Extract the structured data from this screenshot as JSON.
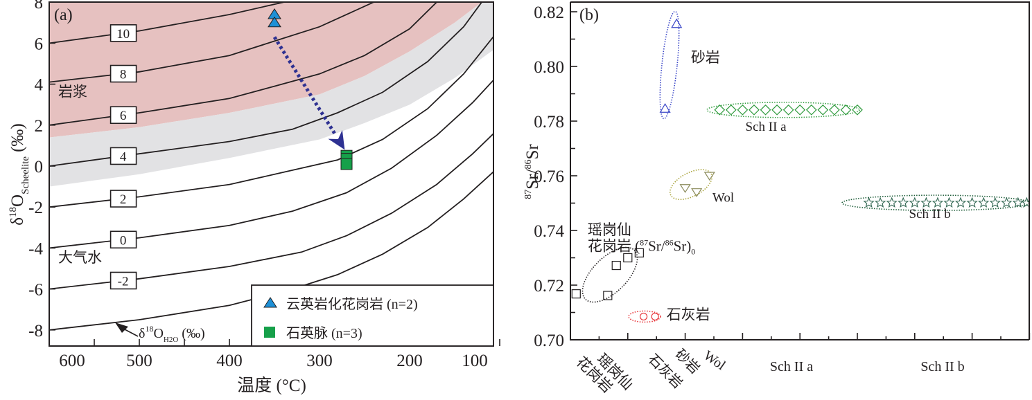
{
  "chart_data": [
    {
      "panel": "(a)",
      "type": "line",
      "title": "",
      "xlabel": "温度 (°C)",
      "ylabel": "δ18O Scheelite (‰)",
      "ylabel_parts": {
        "delta": "δ",
        "sup": "18",
        "main": "O",
        "sub": "Scheelite",
        "unit": "(‰)"
      },
      "xlim": [
        600,
        80
      ],
      "ylim": [
        -8.8,
        8
      ],
      "x_ticks": [
        600,
        500,
        400,
        300,
        200,
        100
      ],
      "x_minor_ticks": [
        550,
        450,
        350,
        250,
        150
      ],
      "y_ticks": [
        8,
        6,
        4,
        2,
        0,
        -2,
        -4,
        -6,
        -8
      ],
      "grid": false,
      "regions": [
        {
          "name": "岩浆",
          "color": "#e6c1c0",
          "label": "岩浆",
          "upper": [
            [
              600,
              8
            ],
            [
              80,
              8
            ]
          ],
          "lower": [
            [
              600,
              1.4
            ],
            [
              500,
              1.9
            ],
            [
              400,
              2.6
            ],
            [
              300,
              3.5
            ],
            [
              250,
              4.4
            ],
            [
              200,
              5.6
            ],
            [
              150,
              7.0
            ],
            [
              120,
              8
            ]
          ]
        },
        {
          "name": "过渡带",
          "color": "#e2e2e4",
          "label": "",
          "upper": [
            [
              600,
              1.4
            ],
            [
              500,
              1.9
            ],
            [
              400,
              2.6
            ],
            [
              300,
              3.5
            ],
            [
              250,
              4.4
            ],
            [
              200,
              5.6
            ],
            [
              150,
              7.0
            ],
            [
              120,
              8
            ],
            [
              80,
              8
            ]
          ],
          "lower": [
            [
              600,
              -1.0
            ],
            [
              500,
              -0.4
            ],
            [
              400,
              0.4
            ],
            [
              300,
              1.3
            ],
            [
              250,
              2.1
            ],
            [
              200,
              3.0
            ],
            [
              150,
              4.3
            ],
            [
              100,
              5.9
            ],
            [
              80,
              6.6
            ]
          ]
        }
      ],
      "isopleths": [
        {
          "label": "10",
          "points": [
            [
              600,
              6.0
            ],
            [
              500,
              6.6
            ],
            [
              400,
              7.4
            ],
            [
              340,
              8.0
            ]
          ]
        },
        {
          "label": "8",
          "points": [
            [
              600,
              4.1
            ],
            [
              500,
              4.6
            ],
            [
              400,
              5.4
            ],
            [
              350,
              6.1
            ],
            [
              300,
              6.8
            ],
            [
              240,
              8.0
            ]
          ]
        },
        {
          "label": "6",
          "points": [
            [
              600,
              2.0
            ],
            [
              500,
              2.6
            ],
            [
              400,
              3.3
            ],
            [
              350,
              3.9
            ],
            [
              300,
              4.5
            ],
            [
              250,
              5.4
            ],
            [
              200,
              6.7
            ],
            [
              170,
              8.0
            ]
          ]
        },
        {
          "label": "4",
          "points": [
            [
              600,
              0.0
            ],
            [
              500,
              0.6
            ],
            [
              400,
              1.2
            ],
            [
              330,
              1.8
            ],
            [
              280,
              2.6
            ],
            [
              230,
              3.6
            ],
            [
              180,
              5.1
            ],
            [
              140,
              6.8
            ],
            [
              120,
              8.0
            ]
          ]
        },
        {
          "label": "2",
          "points": [
            [
              600,
              -2.0
            ],
            [
              500,
              -1.5
            ],
            [
              400,
              -0.9
            ],
            [
              340,
              -0.3
            ],
            [
              280,
              0.3
            ],
            [
              230,
              1.3
            ],
            [
              180,
              2.8
            ],
            [
              140,
              4.5
            ],
            [
              100,
              6.7
            ],
            [
              85,
              7.4
            ]
          ]
        },
        {
          "label": "0",
          "points": [
            [
              600,
              -4.0
            ],
            [
              500,
              -3.5
            ],
            [
              400,
              -2.9
            ],
            [
              330,
              -2.2
            ],
            [
              270,
              -1.3
            ],
            [
              220,
              -0.1
            ],
            [
              170,
              1.5
            ],
            [
              130,
              3.1
            ],
            [
              90,
              5.0
            ],
            [
              80,
              5.4
            ]
          ]
        },
        {
          "label": "-2",
          "points": [
            [
              600,
              -6.0
            ],
            [
              500,
              -5.5
            ],
            [
              400,
              -4.9
            ],
            [
              320,
              -4.2
            ],
            [
              270,
              -3.4
            ],
            [
              220,
              -2.3
            ],
            [
              170,
              -0.9
            ],
            [
              130,
              0.6
            ],
            [
              90,
              2.3
            ],
            [
              80,
              2.9
            ]
          ]
        },
        {
          "label": "",
          "points": [
            [
              600,
              -8.0
            ],
            [
              500,
              -7.5
            ],
            [
              400,
              -6.8
            ],
            [
              330,
              -6.0
            ],
            [
              280,
              -5.3
            ],
            [
              230,
              -4.3
            ],
            [
              180,
              -3.0
            ],
            [
              140,
              -1.6
            ],
            [
              100,
              0.0
            ],
            [
              80,
              0.6
            ]
          ]
        }
      ],
      "isopleth_title": {
        "text": "δ18OH2O (‰)",
        "delta": "δ",
        "sup": "18",
        "main": "O",
        "sub": "H2O",
        "unit": "(‰)"
      },
      "series": [
        {
          "name": "云英岩化花岗岩 (n=2)",
          "marker": "triangle",
          "color": "#1e90d6",
          "x": [
            350,
            350
          ],
          "y": [
            7.4,
            7.0
          ]
        },
        {
          "name": "石英脉 (n=3)",
          "marker": "square",
          "color": "#16a04a",
          "x": [
            270,
            270,
            270
          ],
          "y": [
            0.5,
            0.35,
            0.1
          ]
        }
      ],
      "arrow": {
        "from": [
          350,
          6.3
        ],
        "to": [
          272,
          0.8
        ],
        "color": "#2e3192",
        "style": "dotted"
      },
      "annotations": [
        {
          "text": "(a)",
          "at": "top-left"
        },
        {
          "text": "岩浆",
          "x": 590,
          "y": 3.4
        },
        {
          "text": "大气水",
          "x": 590,
          "y": -4.7
        }
      ],
      "legend": {
        "position": "bottom-right",
        "entries": [
          "云英岩化花岗岩 (n=2)",
          "石英脉 (n=3)"
        ]
      }
    },
    {
      "panel": "(b)",
      "type": "scatter",
      "title": "",
      "xlabel": "",
      "ylabel": "87Sr/86Sr",
      "ylabel_parts": {
        "sup1": "87",
        "a": "Sr",
        "slash": "/",
        "sup2": "86",
        "b": "Sr"
      },
      "ylim": [
        0.7,
        0.823
      ],
      "y_ticks": [
        0.82,
        0.8,
        0.78,
        0.76,
        0.74,
        0.72,
        0.7
      ],
      "y_tick_labels": [
        "0.82",
        "0.80",
        "0.78",
        "0.76",
        "0.74",
        "0.72",
        "0.70"
      ],
      "y_minor_ticks": [
        0.81,
        0.79,
        0.77,
        0.75,
        0.73,
        0.71
      ],
      "xlim": [
        0,
        16
      ],
      "x_major_ticks": [
        2,
        4,
        6,
        8,
        10,
        12,
        14,
        16
      ],
      "x_minor_ticks": [
        1,
        3,
        5,
        7,
        9,
        11,
        13,
        15
      ],
      "grid": false,
      "categories": [
        {
          "label": "瑶岗仙\n花岗岩",
          "line1": "瑶岗仙",
          "line2": "花岗岩",
          "x": 1.5,
          "rotated": true
        },
        {
          "label": "石灰岩",
          "x": 3.5,
          "rotated": true
        },
        {
          "label": "砂岩",
          "x": 4.5,
          "rotated": true
        },
        {
          "label": "Wol",
          "x": 5.4,
          "rotated": true
        },
        {
          "label": "Sch II a",
          "x": 7.3,
          "rotated": false
        },
        {
          "label": "Sch II b",
          "x": 12.3,
          "rotated": false
        }
      ],
      "series": [
        {
          "name": "瑶岗仙花岗岩 (87Sr/86Sr)0",
          "marker": "square",
          "color": "#231f20",
          "ellipse_color": "#231f20",
          "x": [
            0.2,
            1.3,
            1.6,
            2.0,
            2.4
          ],
          "y": [
            0.7168,
            0.7162,
            0.7272,
            0.73,
            0.7318
          ]
        },
        {
          "name": "石灰岩",
          "marker": "circle",
          "color": "#e8383d",
          "ellipse_color": "#e8383d",
          "x": [
            2.55,
            2.95
          ],
          "y": [
            0.7085,
            0.7085
          ]
        },
        {
          "name": "砂岩",
          "marker": "triangle",
          "color": "#3b47c8",
          "ellipse_color": "#3b47c8",
          "x": [
            3.3,
            3.7
          ],
          "y": [
            0.7845,
            0.8155
          ]
        },
        {
          "name": "Wol",
          "marker": "triangle-down",
          "color": "#8a8a5a",
          "ellipse_color": "#a9a33a",
          "x": [
            4.0,
            4.4,
            4.85
          ],
          "y": [
            0.7555,
            0.754,
            0.76
          ]
        },
        {
          "name": "Sch II a",
          "marker": "diamond",
          "color": "#2e9a3c",
          "ellipse_color": "#3aa046",
          "x": [
            5.2,
            5.6,
            6.0,
            6.4,
            6.8,
            7.2,
            7.6,
            8.0,
            8.4,
            8.8,
            9.2,
            9.6,
            10.0
          ],
          "y": [
            0.7841,
            0.7841,
            0.7841,
            0.7841,
            0.7841,
            0.7841,
            0.7841,
            0.7841,
            0.7841,
            0.7841,
            0.7841,
            0.7841,
            0.7841
          ]
        },
        {
          "name": "Sch II b",
          "marker": "star",
          "color": "#3b6e5a",
          "ellipse_color": "#1f5e3a",
          "x": [
            10.4,
            10.8,
            11.2,
            11.6,
            12.0,
            12.4,
            12.8,
            13.2,
            13.6,
            14.0,
            14.4,
            14.8,
            15.2,
            15.6,
            15.9
          ],
          "y": [
            0.7501,
            0.7501,
            0.7501,
            0.7501,
            0.7501,
            0.7501,
            0.7501,
            0.7501,
            0.7501,
            0.7501,
            0.7501,
            0.7501,
            0.7501,
            0.7501,
            0.7501
          ]
        }
      ],
      "annotations": [
        {
          "text": "(b)",
          "at": "top-left"
        },
        {
          "text": "砂岩",
          "x": 4.2,
          "y": 0.8015
        },
        {
          "text": "Sch II a",
          "x": 6.1,
          "y": 0.7765
        },
        {
          "text": "Wol",
          "x": 4.95,
          "y": 0.7505
        },
        {
          "text": "Sch II b",
          "x": 11.8,
          "y": 0.7445
        },
        {
          "text": "瑶岗仙",
          "x": 0.6,
          "y": 0.7385
        },
        {
          "text": "花岗岩 (87Sr/86Sr)0",
          "x": 0.6,
          "y": 0.7325
        },
        {
          "text": "石灰岩",
          "x": 3.35,
          "y": 0.7075
        }
      ]
    }
  ]
}
